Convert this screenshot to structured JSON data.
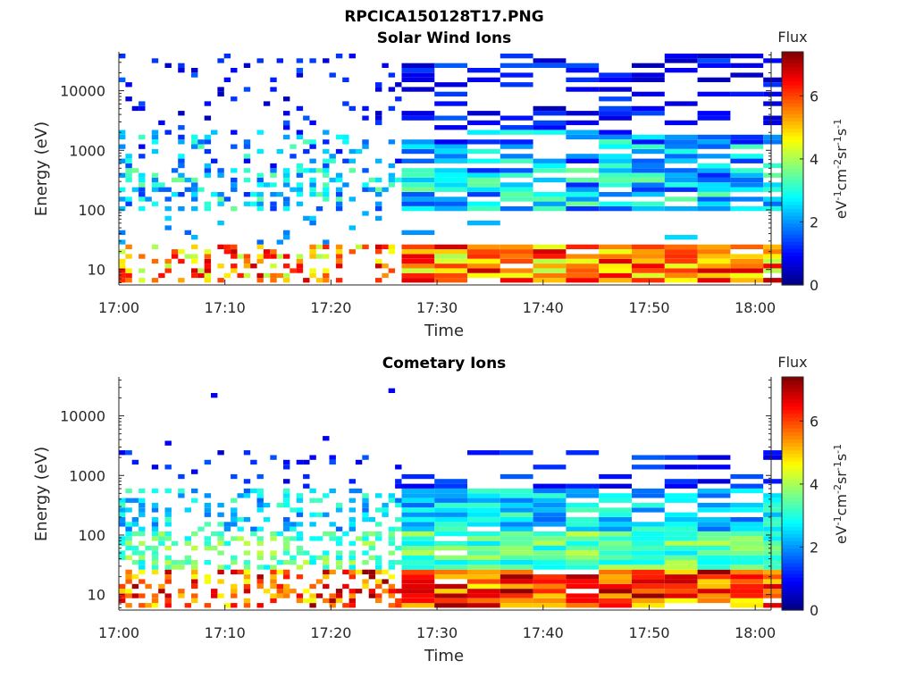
{
  "figure": {
    "title": "RPCICA150128T17.PNG"
  },
  "chart_data": [
    {
      "type": "heatmap",
      "title": "Solar Wind Ions",
      "xlabel": "Time",
      "ylabel": "Energy (eV)",
      "x_tick_labels": [
        "17:00",
        "17:10",
        "17:20",
        "17:30",
        "17:40",
        "17:50",
        "18:00"
      ],
      "x_tick_minutes": [
        0,
        10,
        20,
        30,
        40,
        50,
        60
      ],
      "xlim_minutes": [
        0,
        61.5
      ],
      "y_scale": "log",
      "y_ticks": [
        10,
        100,
        1000,
        10000
      ],
      "y_tick_labels": [
        "10",
        "100",
        "1000",
        "10000"
      ],
      "ylim": [
        5.5,
        45000
      ],
      "colorbar": {
        "title": "Flux",
        "label": "eV-1cm-2sr-1s-1",
        "unit_parts": [
          {
            "t": "eV"
          },
          {
            "t": "-1",
            "sup": true
          },
          {
            "t": "cm"
          },
          {
            "t": "-2",
            "sup": true
          },
          {
            "t": "sr"
          },
          {
            "t": "-1",
            "sup": true
          },
          {
            "t": "s"
          },
          {
            "t": "-1",
            "sup": true
          }
        ],
        "range": [
          0,
          7.4
        ],
        "ticks": [
          0,
          2,
          4,
          6
        ],
        "tick_labels": [
          "0",
          "2",
          "4",
          "6"
        ]
      },
      "colormap": "jet"
    },
    {
      "type": "heatmap",
      "title": "Cometary Ions",
      "xlabel": "Time",
      "ylabel": "Energy (eV)",
      "x_tick_labels": [
        "17:00",
        "17:10",
        "17:20",
        "17:30",
        "17:40",
        "17:50",
        "18:00"
      ],
      "x_tick_minutes": [
        0,
        10,
        20,
        30,
        40,
        50,
        60
      ],
      "xlim_minutes": [
        0,
        61.5
      ],
      "y_scale": "log",
      "y_ticks": [
        10,
        100,
        1000,
        10000
      ],
      "y_tick_labels": [
        "10",
        "100",
        "1000",
        "10000"
      ],
      "ylim": [
        5.5,
        45000
      ],
      "colorbar": {
        "title": "Flux",
        "label": "eV-1cm-2sr-1s-1",
        "unit_parts": [
          {
            "t": "eV"
          },
          {
            "t": "-1",
            "sup": true
          },
          {
            "t": "cm"
          },
          {
            "t": "-2",
            "sup": true
          },
          {
            "t": "sr"
          },
          {
            "t": "-1",
            "sup": true
          },
          {
            "t": "s"
          },
          {
            "t": "-1",
            "sup": true
          }
        ],
        "range": [
          0,
          7.4
        ],
        "ticks": [
          0,
          2,
          4,
          6
        ],
        "tick_labels": [
          "0",
          "2",
          "4",
          "6"
        ]
      },
      "colormap": "jet"
    }
  ]
}
